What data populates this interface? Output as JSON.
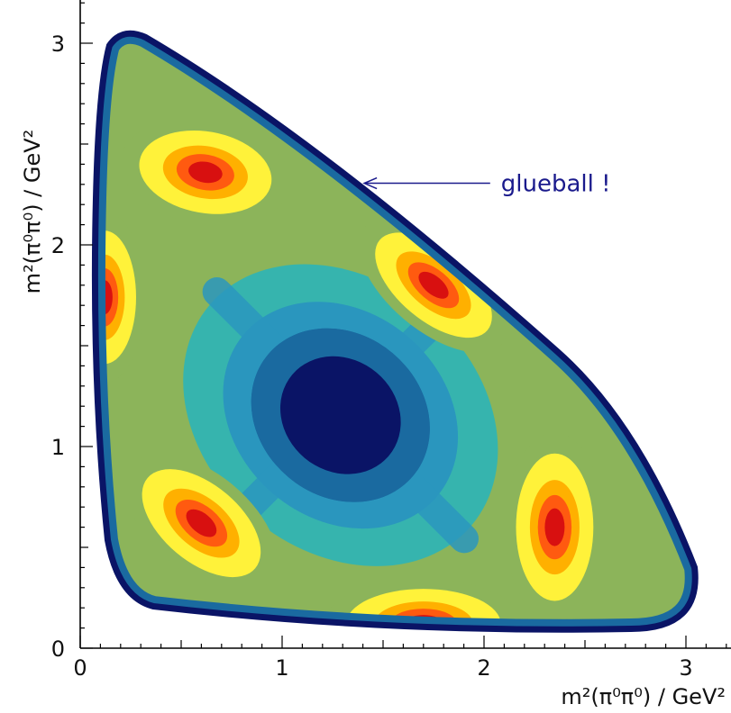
{
  "chart_data": {
    "type": "heatmap",
    "title": "",
    "xlabel": "m²(π⁰π⁰) / GeV²",
    "ylabel": "m²(π⁰π⁰) / GeV²",
    "xlim": [
      0,
      3.2
    ],
    "ylim": [
      0,
      3.2
    ],
    "x_ticks": [
      "0",
      "1",
      "2",
      "3"
    ],
    "y_ticks": [
      "0",
      "1",
      "2",
      "3"
    ],
    "grid": false,
    "colorscale": [
      "#0a1466",
      "#1a6aa0",
      "#2a96be",
      "#36b4ae",
      "#8cb45a",
      "#fff23a",
      "#ffb000",
      "#ff5a10",
      "#d81010"
    ],
    "annotation": {
      "text": "glueball !",
      "arrow_target": [
        1.38,
        2.27
      ],
      "text_anchor": [
        1.95,
        2.27
      ]
    },
    "hotspots": [
      {
        "x": 0.62,
        "y": 2.36,
        "intensity": "high"
      },
      {
        "x": 0.12,
        "y": 1.74,
        "intensity": "high"
      },
      {
        "x": 1.75,
        "y": 1.8,
        "intensity": "high"
      },
      {
        "x": 0.6,
        "y": 0.62,
        "intensity": "high"
      },
      {
        "x": 2.35,
        "y": 0.6,
        "intensity": "high"
      },
      {
        "x": 1.7,
        "y": 0.12,
        "intensity": "high"
      }
    ],
    "minimum": {
      "x": 1.2,
      "y": 1.2,
      "intensity": "low"
    }
  }
}
